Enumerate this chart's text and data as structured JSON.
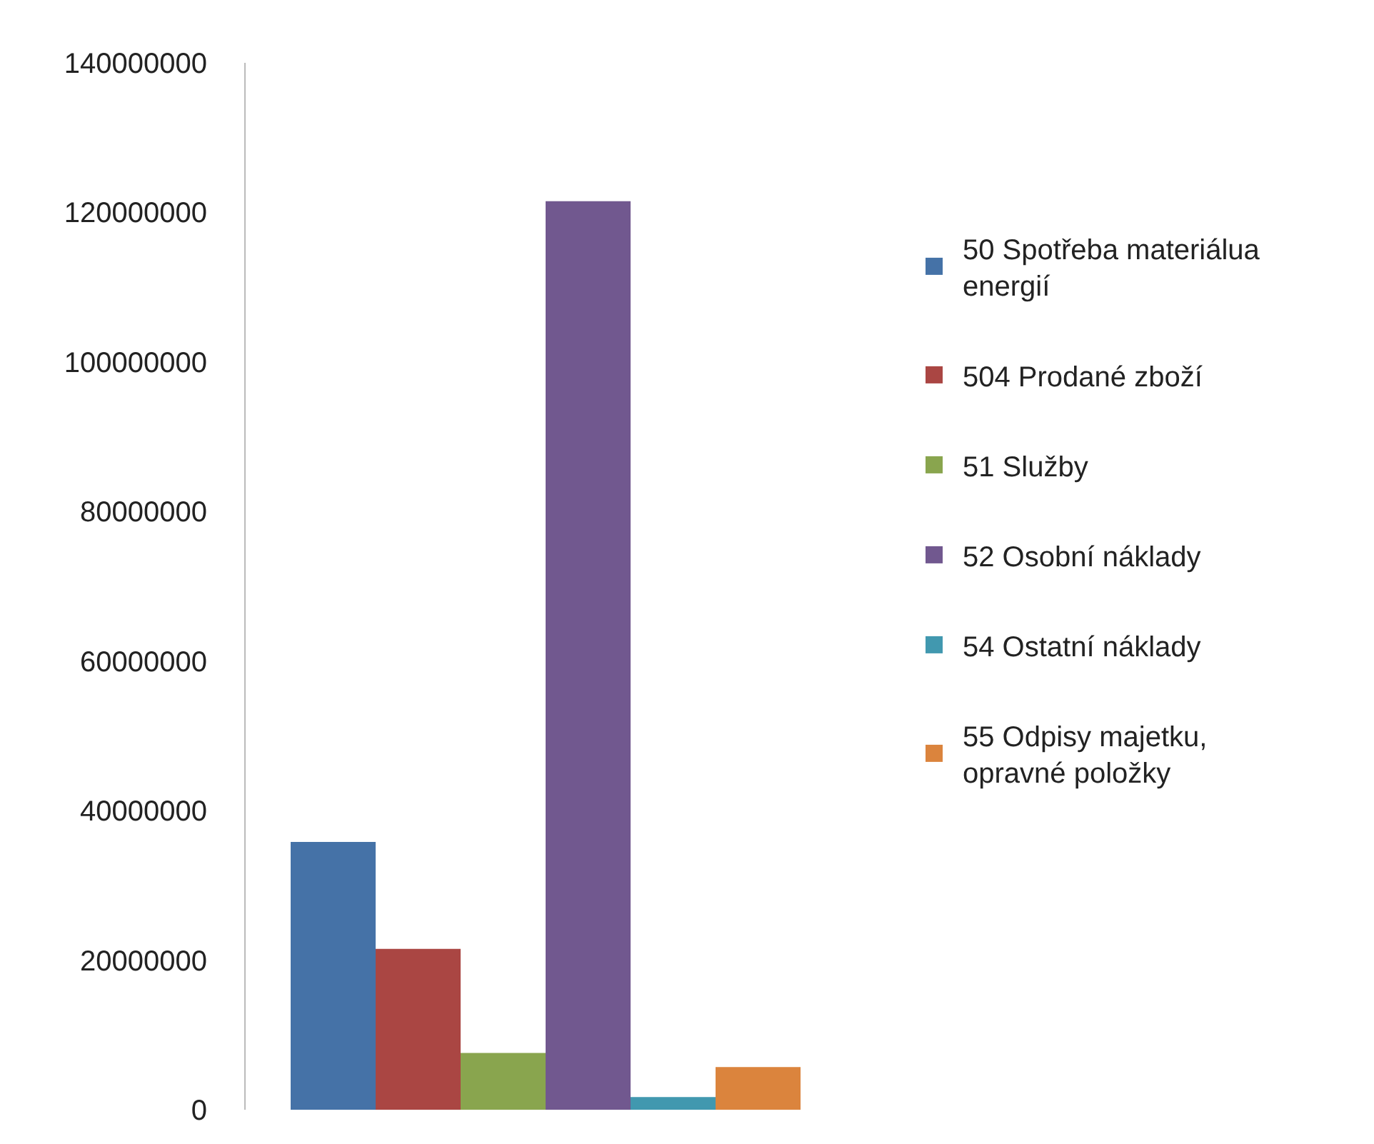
{
  "chart_data": {
    "type": "bar",
    "categories": [
      null
    ],
    "series": [
      {
        "name": "50 Spotřeba materiálua energií",
        "color": "#4572a7",
        "values": [
          35800000
        ]
      },
      {
        "name": "504 Prodané zboží",
        "color": "#aa4643",
        "values": [
          21500000
        ]
      },
      {
        "name": "51 Služby",
        "color": "#89a54e",
        "values": [
          7600000
        ]
      },
      {
        "name": "52 Osobní náklady",
        "color": "#71588f",
        "values": [
          121500000
        ]
      },
      {
        "name": "54 Ostatní náklady",
        "color": "#4198af",
        "values": [
          1700000
        ]
      },
      {
        "name": "55 Odpisy majetku, opravné položky",
        "color": "#db843d",
        "values": [
          5700000
        ]
      }
    ],
    "ylim": [
      0,
      140000000
    ],
    "yticks": [
      0,
      20000000,
      40000000,
      60000000,
      80000000,
      100000000,
      120000000,
      140000000
    ],
    "grid": false,
    "legend": "right"
  }
}
